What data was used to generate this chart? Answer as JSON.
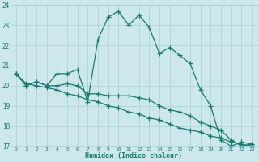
{
  "xlabel": "Humidex (Indice chaleur)",
  "x": [
    0,
    1,
    2,
    3,
    4,
    5,
    6,
    7,
    8,
    9,
    10,
    11,
    12,
    13,
    14,
    15,
    16,
    17,
    18,
    19,
    20,
    21,
    22,
    23
  ],
  "line1": [
    20.6,
    20.0,
    20.2,
    20.0,
    20.6,
    20.6,
    20.8,
    19.2,
    22.3,
    23.4,
    23.7,
    23.0,
    23.5,
    22.9,
    21.6,
    21.9,
    21.5,
    21.1,
    19.8,
    19.0,
    17.3,
    17.0,
    17.2,
    17.1
  ],
  "line2": [
    20.6,
    20.0,
    20.2,
    20.0,
    20.0,
    20.1,
    20.0,
    19.6,
    19.6,
    19.5,
    19.5,
    19.5,
    19.4,
    19.3,
    19.0,
    18.8,
    18.7,
    18.5,
    18.2,
    18.0,
    17.8,
    17.3,
    17.0,
    17.1
  ],
  "line3": [
    20.6,
    20.1,
    20.0,
    19.9,
    19.8,
    19.6,
    19.5,
    19.3,
    19.2,
    19.0,
    18.9,
    18.7,
    18.6,
    18.4,
    18.3,
    18.1,
    17.9,
    17.8,
    17.7,
    17.5,
    17.4,
    17.2,
    17.1,
    17.0
  ],
  "line_color": "#1a7a6e",
  "bg_color": "#cce8ed",
  "grid_color": "#aacdd5",
  "ylim": [
    17,
    24
  ],
  "xlim": [
    -0.5,
    23.5
  ],
  "yticks": [
    17,
    18,
    19,
    20,
    21,
    22,
    23,
    24
  ],
  "xticks": [
    0,
    1,
    2,
    3,
    4,
    5,
    6,
    7,
    8,
    9,
    10,
    11,
    12,
    13,
    14,
    15,
    16,
    17,
    18,
    19,
    20,
    21,
    22,
    23
  ]
}
